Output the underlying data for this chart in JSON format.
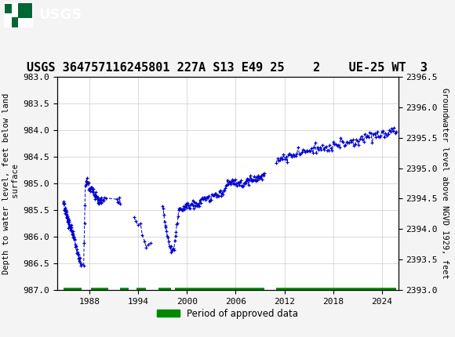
{
  "title": "USGS 364757116245801 227A S13 E49 25    2    UE-25 WT  3",
  "ylabel_left": "Depth to water level, feet below land\n surface",
  "ylabel_right": "Groundwater level above NGVD 1929, feet",
  "ylim_left": [
    987.0,
    983.0
  ],
  "ylim_right": [
    2393.0,
    2396.5
  ],
  "xlim": [
    1984.0,
    2026.0
  ],
  "xticks": [
    1988,
    1994,
    2000,
    2006,
    2012,
    2018,
    2024
  ],
  "yticks_left": [
    983.0,
    983.5,
    984.0,
    984.5,
    985.0,
    985.5,
    986.0,
    986.5,
    987.0
  ],
  "yticks_right": [
    2393.0,
    2393.5,
    2394.0,
    2394.5,
    2395.0,
    2395.5,
    2396.0,
    2396.5
  ],
  "line_color": "#0000cc",
  "approved_color": "#008800",
  "header_color": "#006633",
  "bg_color": "#ffffff",
  "fig_bg": "#f4f4f4",
  "grid_color": "#cccccc",
  "title_fontsize": 11,
  "tick_fontsize": 8,
  "label_fontsize": 7.5,
  "approved_periods": [
    [
      1984.8,
      1987.0
    ],
    [
      1988.2,
      1990.3
    ],
    [
      1991.8,
      1992.8
    ],
    [
      1993.8,
      1995.0
    ],
    [
      1996.5,
      1998.0
    ],
    [
      1998.5,
      2009.5
    ],
    [
      2011.0,
      2025.8
    ]
  ]
}
